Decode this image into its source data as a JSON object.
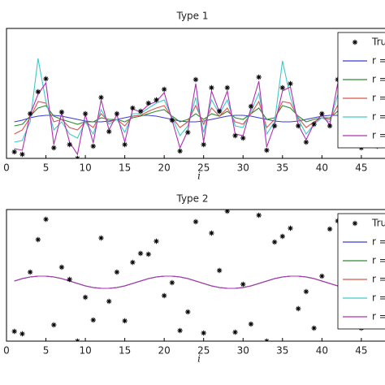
{
  "chart_data": [
    {
      "type": "line",
      "title": "Type 1",
      "xlabel": "i",
      "x": [
        1,
        2,
        3,
        4,
        5,
        6,
        7,
        8,
        9,
        10,
        11,
        12,
        13,
        14,
        15,
        16,
        17,
        18,
        19,
        20,
        21,
        22,
        23,
        24,
        25,
        26,
        27,
        28,
        29,
        30,
        31,
        32,
        33,
        34,
        35,
        36,
        37,
        38,
        39,
        40,
        41,
        42,
        43,
        44,
        45,
        46,
        47
      ],
      "xlim": [
        0,
        48
      ],
      "xticks": [
        0,
        5,
        10,
        15,
        20,
        25,
        30,
        35,
        40,
        45
      ],
      "ylim": [
        0,
        160
      ],
      "legend": "upper right",
      "series": [
        {
          "name": "Tru",
          "color": "#000000",
          "mode": "markers",
          "values": [
            8,
            5,
            55,
            82,
            98,
            13,
            57,
            17,
            0,
            55,
            15,
            75,
            33,
            55,
            17,
            62,
            58,
            68,
            72,
            85,
            47,
            9,
            32,
            97,
            17,
            87,
            58,
            87,
            28,
            25,
            64,
            100,
            10,
            40,
            87,
            92,
            40,
            20,
            42,
            55,
            40,
            97,
            17,
            47,
            13,
            62,
            15
          ]
        },
        {
          "name": "r =",
          "color": "#3b3bd6",
          "mode": "lines",
          "values": [
            45,
            47,
            50,
            52,
            53,
            53,
            52,
            50,
            48,
            46,
            45,
            45,
            46,
            48,
            50,
            52,
            53,
            53,
            52,
            50,
            48,
            46,
            45,
            45,
            46,
            48,
            50,
            52,
            53,
            53,
            52,
            50,
            48,
            46,
            45,
            45,
            46,
            48,
            50,
            52,
            53,
            53,
            52,
            50,
            48,
            46,
            45
          ]
        },
        {
          "name": "r =",
          "color": "#2e8b2e",
          "mode": "lines",
          "values": [
            40,
            42,
            52,
            62,
            65,
            52,
            48,
            45,
            42,
            45,
            45,
            50,
            48,
            48,
            45,
            50,
            52,
            55,
            58,
            60,
            52,
            45,
            48,
            55,
            48,
            55,
            52,
            58,
            50,
            48,
            55,
            62,
            48,
            50,
            65,
            62,
            52,
            45,
            48,
            50,
            50,
            58,
            48,
            48,
            45,
            48,
            46
          ]
        },
        {
          "name": "r =",
          "color": "#d9534f",
          "mode": "lines",
          "values": [
            30,
            35,
            50,
            70,
            68,
            45,
            48,
            38,
            35,
            45,
            38,
            55,
            45,
            48,
            40,
            52,
            53,
            58,
            62,
            65,
            50,
            38,
            45,
            65,
            42,
            62,
            52,
            62,
            45,
            42,
            55,
            70,
            38,
            48,
            70,
            68,
            50,
            38,
            45,
            50,
            48,
            65,
            40,
            48,
            40,
            50,
            42
          ]
        },
        {
          "name": "r =",
          "color": "#3fc9c9",
          "mode": "lines",
          "values": [
            20,
            22,
            45,
            123,
            70,
            35,
            45,
            30,
            25,
            45,
            30,
            60,
            42,
            48,
            32,
            55,
            55,
            62,
            68,
            72,
            50,
            28,
            40,
            75,
            32,
            72,
            55,
            72,
            40,
            38,
            58,
            80,
            30,
            45,
            120,
            75,
            48,
            30,
            42,
            50,
            45,
            78,
            32,
            46,
            30,
            52,
            35
          ]
        },
        {
          "name": "r =",
          "color": "#b030b0",
          "mode": "lines",
          "values": [
            12,
            10,
            54,
            79,
            93,
            17,
            56,
            20,
            5,
            54,
            19,
            72,
            35,
            54,
            20,
            61,
            57,
            66,
            70,
            81,
            47,
            13,
            34,
            92,
            20,
            83,
            57,
            83,
            30,
            28,
            62,
            95,
            14,
            41,
            83,
            88,
            41,
            23,
            43,
            54,
            41,
            92,
            20,
            47,
            17,
            61,
            19
          ]
        }
      ]
    },
    {
      "type": "line",
      "title": "Type 2",
      "xlabel": "i",
      "x": [
        1,
        2,
        3,
        4,
        5,
        6,
        7,
        8,
        9,
        10,
        11,
        12,
        13,
        14,
        15,
        16,
        17,
        18,
        19,
        20,
        21,
        22,
        23,
        24,
        25,
        26,
        27,
        28,
        29,
        30,
        31,
        32,
        33,
        34,
        35,
        36,
        37,
        38,
        39,
        40,
        41,
        42,
        43,
        44,
        45,
        46,
        47
      ],
      "xlim": [
        0,
        48
      ],
      "xticks": [
        0,
        5,
        10,
        15,
        20,
        25,
        30,
        35,
        40,
        45
      ],
      "ylim": [
        0,
        162
      ],
      "legend": "upper right",
      "series": [
        {
          "name": "Tru",
          "color": "#000000",
          "mode": "markers",
          "values": [
            12,
            9,
            85,
            125,
            150,
            20,
            91,
            76,
            0,
            54,
            26,
            127,
            49,
            85,
            25,
            97,
            108,
            107,
            123,
            56,
            72,
            13,
            36,
            147,
            10,
            133,
            87,
            160,
            11,
            70,
            21,
            155,
            0,
            122,
            129,
            139,
            40,
            61,
            16,
            80,
            138,
            148,
            28,
            44,
            16,
            150,
            112
          ]
        },
        {
          "name": "r =",
          "color": "#3b3bd6",
          "mode": "lines",
          "values": [
            74,
            77,
            79,
            80,
            80,
            79,
            77,
            74,
            71,
            68,
            66,
            65,
            65,
            66,
            68,
            71,
            74,
            77,
            79,
            80,
            80,
            79,
            77,
            74,
            71,
            68,
            66,
            65,
            65,
            66,
            68,
            71,
            74,
            77,
            79,
            80,
            80,
            79,
            77,
            74,
            71,
            68,
            66,
            65,
            65,
            66,
            68
          ]
        },
        {
          "name": "r =",
          "color": "#2e8b2e",
          "mode": "lines",
          "values": [
            74,
            77,
            79,
            80,
            80,
            79,
            77,
            74,
            71,
            68,
            66,
            65,
            65,
            66,
            68,
            71,
            74,
            77,
            79,
            80,
            80,
            79,
            77,
            74,
            71,
            68,
            66,
            65,
            65,
            66,
            68,
            71,
            74,
            77,
            79,
            80,
            80,
            79,
            77,
            74,
            71,
            68,
            66,
            65,
            65,
            66,
            68
          ]
        },
        {
          "name": "r =",
          "color": "#d9534f",
          "mode": "lines",
          "values": [
            74,
            77,
            79,
            80,
            80,
            79,
            77,
            74,
            71,
            68,
            66,
            65,
            65,
            66,
            68,
            71,
            74,
            77,
            79,
            80,
            80,
            79,
            77,
            74,
            71,
            68,
            66,
            65,
            65,
            66,
            68,
            71,
            74,
            77,
            79,
            80,
            80,
            79,
            77,
            74,
            71,
            68,
            66,
            65,
            65,
            66,
            68
          ]
        },
        {
          "name": "r =",
          "color": "#3fc9c9",
          "mode": "lines",
          "values": [
            74,
            77,
            79,
            80,
            80,
            79,
            77,
            74,
            71,
            68,
            66,
            65,
            65,
            66,
            68,
            71,
            74,
            77,
            79,
            80,
            80,
            79,
            77,
            74,
            71,
            68,
            66,
            65,
            65,
            66,
            68,
            71,
            74,
            77,
            79,
            80,
            80,
            79,
            77,
            74,
            71,
            68,
            66,
            65,
            65,
            66,
            68
          ]
        },
        {
          "name": "r =",
          "color": "#b030b0",
          "mode": "lines",
          "values": [
            74,
            77,
            79,
            80,
            80,
            79,
            77,
            74,
            71,
            68,
            66,
            65,
            65,
            66,
            68,
            71,
            74,
            77,
            79,
            80,
            80,
            79,
            77,
            74,
            71,
            68,
            66,
            65,
            65,
            66,
            68,
            71,
            74,
            77,
            79,
            80,
            80,
            79,
            77,
            74,
            71,
            68,
            66,
            65,
            65,
            66,
            68
          ]
        }
      ]
    }
  ]
}
